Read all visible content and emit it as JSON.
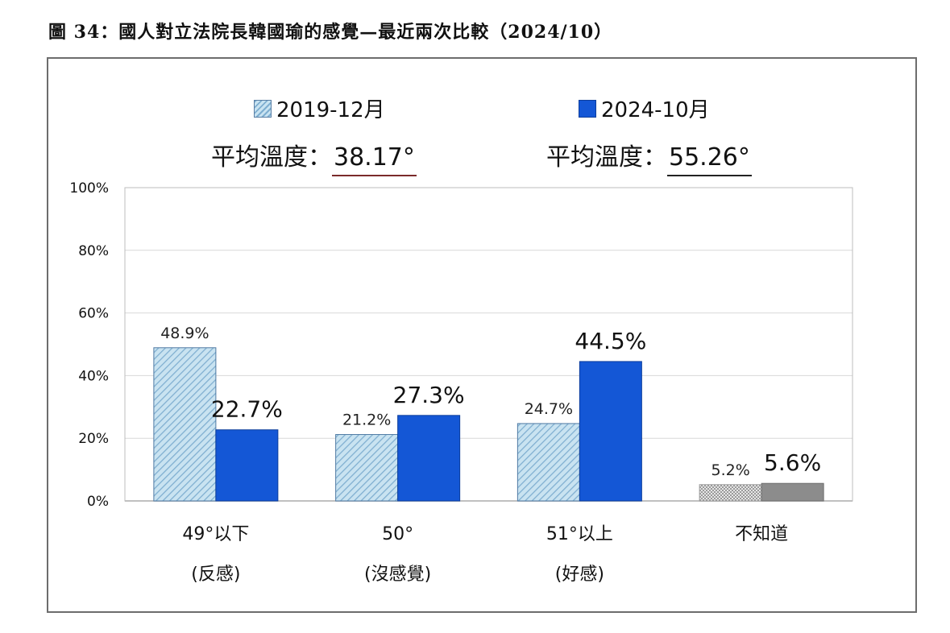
{
  "title": "圖 34：國人對立法院長韓國瑜的感覺—最近兩次比較（2024/10）",
  "legend": {
    "series_2019": "2019-12月",
    "series_2024": "2024-10月"
  },
  "average": {
    "label": "平均溫度：",
    "value_2019": "38.17°",
    "value_2024": "55.26°"
  },
  "colors": {
    "series_2019": "#c9e3f1",
    "series_2019_hatch": "#7eaed0",
    "series_2024": "#1457d6",
    "unknown_2019": "#d9d9d9",
    "unknown_2024": "#8c8c8c"
  },
  "chart_data": {
    "type": "bar",
    "categories": [
      {
        "line1": "49°以下",
        "line2": "(反感)"
      },
      {
        "line1": "50°",
        "line2": "(沒感覺)"
      },
      {
        "line1": "51°以上",
        "line2": "(好感)"
      },
      {
        "line1": "不知道",
        "line2": ""
      }
    ],
    "series": [
      {
        "name": "2019-12月",
        "values": [
          48.9,
          21.2,
          24.7,
          5.2
        ],
        "labels": [
          "48.9%",
          "21.2%",
          "24.7%",
          "5.2%"
        ]
      },
      {
        "name": "2024-10月",
        "values": [
          22.7,
          27.3,
          44.5,
          5.6
        ],
        "labels": [
          "22.7%",
          "27.3%",
          "44.5%",
          "5.6%"
        ]
      }
    ],
    "yticks": [
      "0%",
      "20%",
      "40%",
      "60%",
      "80%",
      "100%"
    ],
    "ylim": [
      0,
      100
    ],
    "grid": true,
    "legend_position": "top-center"
  }
}
